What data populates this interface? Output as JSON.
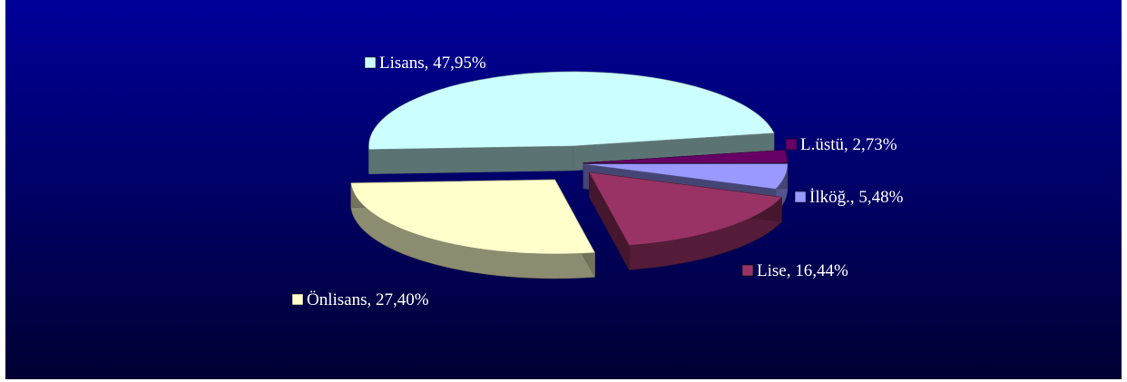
{
  "chart_data": {
    "type": "pie",
    "style": "3d-exploded",
    "slices": [
      {
        "label": "L.üstü",
        "value": 2.73,
        "display": "L.üstü, 2,73%",
        "color": "#660066"
      },
      {
        "label": "İlköğ.",
        "value": 5.48,
        "display": "İlköğ., 5,48%",
        "color": "#9999ff"
      },
      {
        "label": "Lise",
        "value": 16.44,
        "display": "Lise, 16,44%",
        "color": "#993366"
      },
      {
        "label": "Önlisans",
        "value": 27.4,
        "display": "Önlisans, 27,40%",
        "color": "#ffffcc"
      },
      {
        "label": "Lisans",
        "value": 47.95,
        "display": "Lisans, 47,95%",
        "color": "#ccffff"
      }
    ],
    "background_gradient": [
      "#000099",
      "#000033"
    ]
  }
}
